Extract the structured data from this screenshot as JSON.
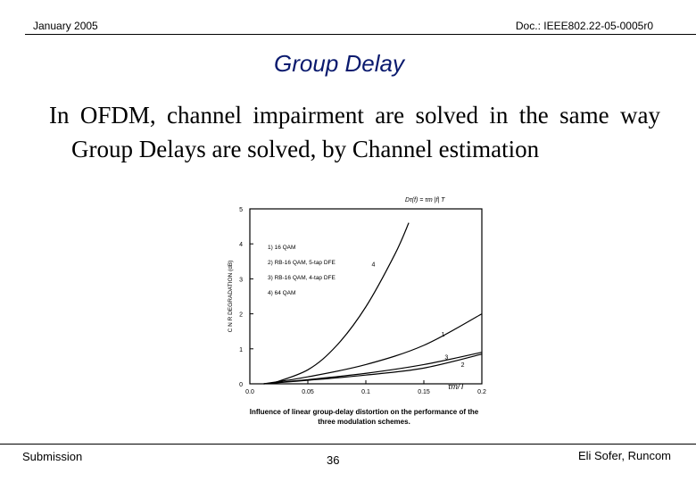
{
  "header": {
    "date": "January 2005",
    "doc": "Doc.: IEEE802.22-05-0005r0"
  },
  "title": "Group Delay",
  "body_text": "In OFDM, channel impairment are solved in the same way Group Delays are solved, by Channel estimation",
  "figure": {
    "formula": "Dτ(f) = τm |f| T",
    "ylabel": "C N R  DEGRADATION  (dB)",
    "xlabel": "τm/T",
    "legend": [
      "1) 16 QAM",
      "2) RB-16 QAM, 5-tap DFE",
      "3) RB-16 QAM, 4-tap DFE",
      "4) 64 QAM"
    ],
    "caption_line1": "Influence of linear group-delay distortion on the performance of the",
    "caption_line2": "three modulation schemes."
  },
  "chart_data": {
    "type": "line",
    "title": "",
    "xlabel": "τm/T",
    "ylabel": "C N R DEGRADATION (dB)",
    "xlim": [
      0.0,
      0.2
    ],
    "ylim": [
      0,
      5
    ],
    "x_ticks": [
      "0.0",
      "0.05",
      "0.1",
      "0.15",
      "0.2"
    ],
    "y_ticks": [
      "0",
      "1",
      "2",
      "3",
      "4",
      "5"
    ],
    "series": [
      {
        "name": "1",
        "x": [
          0.012,
          0.05,
          0.1,
          0.15,
          0.2
        ],
        "y": [
          0.0,
          0.2,
          0.55,
          1.1,
          2.0
        ]
      },
      {
        "name": "2",
        "x": [
          0.012,
          0.05,
          0.1,
          0.15,
          0.2
        ],
        "y": [
          0.0,
          0.1,
          0.25,
          0.45,
          0.85
        ]
      },
      {
        "name": "3",
        "x": [
          0.012,
          0.05,
          0.1,
          0.15,
          0.2
        ],
        "y": [
          0.0,
          0.12,
          0.3,
          0.55,
          0.9
        ]
      },
      {
        "name": "4",
        "x": [
          0.018,
          0.05,
          0.075,
          0.1,
          0.125,
          0.137
        ],
        "y": [
          0.0,
          0.4,
          1.1,
          2.2,
          3.7,
          4.6
        ]
      }
    ],
    "grid": false,
    "legend_position": "top-left"
  },
  "footer": {
    "left": "Submission",
    "page": "36",
    "right": "Eli Sofer, Runcom"
  }
}
